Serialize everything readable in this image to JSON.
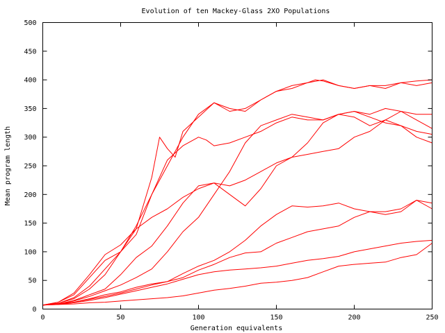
{
  "chart_data": {
    "type": "line",
    "title": "Evolution of ten Mackey-Glass 2XO Populations",
    "xlabel": "Generation equivalents",
    "ylabel": "Mean program length",
    "xlim": [
      0,
      250
    ],
    "ylim": [
      0,
      500
    ],
    "xticks": [
      0,
      50,
      100,
      150,
      200,
      250
    ],
    "yticks": [
      0,
      50,
      100,
      150,
      200,
      250,
      300,
      350,
      400,
      450,
      500
    ],
    "grid": false,
    "legend": "none",
    "line_color": "#ff0000",
    "series": [
      {
        "x": [
          0,
          10,
          20,
          30,
          40,
          50,
          60,
          70,
          75,
          80,
          85,
          90,
          100,
          110,
          120,
          130,
          140,
          150,
          160,
          170,
          175,
          180,
          190,
          200,
          210,
          220,
          230,
          240,
          250
        ],
        "values": [
          7,
          12,
          28,
          60,
          95,
          112,
          140,
          230,
          300,
          280,
          265,
          310,
          335,
          360,
          350,
          345,
          365,
          380,
          385,
          395,
          400,
          398,
          390,
          385,
          390,
          390,
          395,
          398,
          400
        ]
      },
      {
        "x": [
          0,
          10,
          20,
          30,
          40,
          50,
          60,
          70,
          80,
          90,
          100,
          110,
          120,
          130,
          140,
          150,
          160,
          170,
          180,
          190,
          200,
          210,
          220,
          230,
          240,
          250
        ],
        "values": [
          7,
          12,
          25,
          55,
          85,
          100,
          130,
          200,
          250,
          300,
          340,
          360,
          345,
          350,
          365,
          380,
          390,
          395,
          400,
          390,
          385,
          390,
          385,
          395,
          390,
          395
        ]
      },
      {
        "x": [
          0,
          10,
          20,
          30,
          40,
          50,
          60,
          70,
          80,
          90,
          100,
          105,
          110,
          120,
          130,
          140,
          150,
          160,
          170,
          180,
          190,
          200,
          210,
          220,
          230,
          240,
          250
        ],
        "values": [
          7,
          10,
          20,
          40,
          70,
          100,
          145,
          200,
          260,
          285,
          300,
          295,
          285,
          290,
          300,
          310,
          325,
          335,
          330,
          330,
          340,
          345,
          340,
          350,
          345,
          340,
          340
        ]
      },
      {
        "x": [
          0,
          10,
          20,
          30,
          40,
          50,
          60,
          70,
          80,
          90,
          100,
          110,
          120,
          130,
          140,
          150,
          160,
          170,
          180,
          190,
          200,
          210,
          220,
          230,
          240,
          250
        ],
        "values": [
          7,
          10,
          18,
          35,
          60,
          100,
          140,
          160,
          175,
          195,
          210,
          220,
          215,
          225,
          240,
          255,
          265,
          270,
          275,
          280,
          300,
          310,
          330,
          320,
          300,
          290
        ]
      },
      {
        "x": [
          0,
          10,
          20,
          30,
          40,
          50,
          60,
          70,
          80,
          90,
          100,
          110,
          120,
          130,
          140,
          150,
          160,
          170,
          180,
          190,
          200,
          210,
          220,
          230,
          240,
          250
        ],
        "values": [
          7,
          9,
          15,
          25,
          35,
          60,
          90,
          110,
          145,
          185,
          215,
          220,
          200,
          180,
          210,
          250,
          265,
          290,
          325,
          340,
          335,
          320,
          330,
          345,
          330,
          315
        ]
      },
      {
        "x": [
          0,
          10,
          20,
          30,
          40,
          50,
          60,
          70,
          80,
          90,
          100,
          110,
          120,
          130,
          140,
          150,
          160,
          170,
          180,
          190,
          200,
          210,
          220,
          230,
          240,
          250
        ],
        "values": [
          7,
          9,
          14,
          22,
          32,
          42,
          55,
          70,
          100,
          135,
          160,
          200,
          240,
          290,
          320,
          330,
          340,
          335,
          330,
          340,
          345,
          335,
          325,
          320,
          310,
          305
        ]
      },
      {
        "x": [
          0,
          10,
          20,
          30,
          40,
          50,
          60,
          70,
          80,
          90,
          100,
          110,
          120,
          130,
          140,
          150,
          160,
          170,
          180,
          190,
          200,
          210,
          220,
          230,
          240,
          250
        ],
        "values": [
          7,
          9,
          12,
          18,
          25,
          30,
          38,
          44,
          48,
          62,
          75,
          85,
          100,
          120,
          145,
          165,
          180,
          178,
          180,
          185,
          175,
          170,
          165,
          170,
          190,
          175
        ]
      },
      {
        "x": [
          0,
          10,
          20,
          30,
          40,
          50,
          60,
          70,
          80,
          90,
          100,
          110,
          120,
          130,
          140,
          150,
          160,
          170,
          180,
          190,
          200,
          210,
          220,
          230,
          240,
          250
        ],
        "values": [
          7,
          9,
          12,
          17,
          22,
          28,
          35,
          42,
          48,
          55,
          68,
          78,
          90,
          98,
          100,
          115,
          125,
          135,
          140,
          145,
          160,
          170,
          170,
          175,
          190,
          185
        ]
      },
      {
        "x": [
          0,
          10,
          20,
          30,
          40,
          50,
          60,
          70,
          80,
          90,
          100,
          110,
          120,
          130,
          140,
          150,
          160,
          170,
          180,
          190,
          200,
          210,
          220,
          230,
          240,
          250
        ],
        "values": [
          7,
          8,
          11,
          15,
          20,
          26,
          32,
          38,
          44,
          52,
          60,
          65,
          68,
          70,
          72,
          75,
          80,
          85,
          88,
          92,
          100,
          105,
          110,
          115,
          118,
          120
        ]
      },
      {
        "x": [
          0,
          10,
          20,
          30,
          40,
          50,
          60,
          70,
          80,
          90,
          100,
          110,
          120,
          130,
          140,
          150,
          160,
          170,
          180,
          190,
          200,
          210,
          220,
          230,
          240,
          250
        ],
        "values": [
          7,
          8,
          9,
          11,
          12,
          14,
          16,
          18,
          20,
          23,
          28,
          33,
          36,
          40,
          45,
          47,
          50,
          55,
          65,
          75,
          78,
          80,
          82,
          90,
          95,
          115
        ]
      }
    ]
  }
}
